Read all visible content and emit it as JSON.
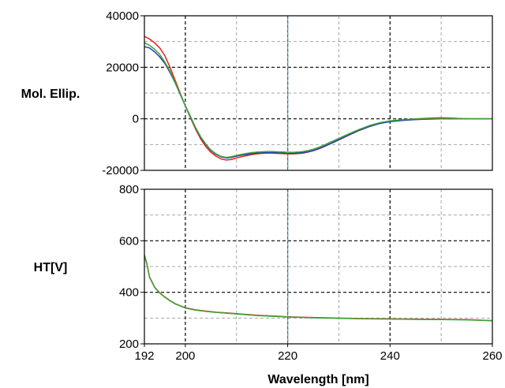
{
  "chart_data": [
    {
      "type": "line",
      "ylabel": "Mol. Ellip.",
      "xlim": [
        192,
        260
      ],
      "ylim": [
        -20000,
        40000
      ],
      "yticks": [
        40000,
        20000,
        0,
        -20000
      ],
      "grid": true,
      "cursor_x": 220,
      "series": [
        {
          "color": "#e8201f",
          "x": [
            192,
            193,
            194,
            195,
            196,
            197,
            198,
            199,
            200,
            201,
            202,
            203,
            204,
            205,
            206,
            207,
            208,
            209,
            210,
            211,
            212,
            213,
            214,
            215,
            216,
            217,
            218,
            219,
            220,
            221,
            222,
            223,
            224,
            225,
            226,
            227,
            228,
            229,
            230,
            232,
            234,
            236,
            238,
            240,
            242,
            244,
            246,
            248,
            250,
            252,
            254,
            256,
            258,
            260
          ],
          "values": [
            32000,
            31000,
            29500,
            27500,
            24500,
            20000,
            15000,
            10000,
            5000,
            400,
            -4000,
            -7800,
            -10800,
            -13000,
            -14500,
            -15600,
            -16000,
            -15800,
            -15200,
            -14700,
            -14300,
            -13900,
            -13600,
            -13400,
            -13300,
            -13300,
            -13400,
            -13500,
            -13600,
            -13600,
            -13500,
            -13300,
            -12900,
            -12400,
            -11700,
            -10900,
            -10000,
            -9100,
            -8200,
            -6300,
            -4500,
            -3000,
            -1800,
            -1000,
            -500,
            -150,
            100,
            300,
            400,
            300,
            100,
            0,
            0,
            0
          ]
        },
        {
          "color": "#1f3fb0",
          "x": [
            192,
            193,
            194,
            195,
            196,
            197,
            198,
            199,
            200,
            201,
            202,
            203,
            204,
            205,
            206,
            207,
            208,
            209,
            210,
            211,
            212,
            213,
            214,
            215,
            216,
            217,
            218,
            219,
            220,
            221,
            222,
            223,
            224,
            225,
            226,
            227,
            228,
            229,
            230,
            232,
            234,
            236,
            238,
            240,
            242,
            244,
            246,
            248,
            250,
            252,
            254,
            256,
            258,
            260
          ],
          "values": [
            28000,
            27500,
            26000,
            24000,
            21500,
            18000,
            14000,
            9500,
            5000,
            800,
            -3500,
            -7200,
            -10000,
            -12300,
            -13800,
            -14800,
            -15200,
            -15000,
            -14500,
            -14100,
            -13800,
            -13500,
            -13300,
            -13200,
            -13100,
            -13100,
            -13200,
            -13300,
            -13400,
            -13400,
            -13300,
            -13100,
            -12800,
            -12300,
            -11600,
            -10800,
            -9900,
            -9000,
            -8100,
            -6200,
            -4400,
            -2900,
            -1800,
            -1100,
            -700,
            -400,
            -200,
            -100,
            0,
            0,
            0,
            0,
            0,
            0
          ]
        },
        {
          "color": "#3aa335",
          "x": [
            192,
            193,
            194,
            195,
            196,
            197,
            198,
            199,
            200,
            201,
            202,
            203,
            204,
            205,
            206,
            207,
            208,
            209,
            210,
            211,
            212,
            213,
            214,
            215,
            216,
            217,
            218,
            219,
            220,
            221,
            222,
            223,
            224,
            225,
            226,
            227,
            228,
            229,
            230,
            232,
            234,
            236,
            238,
            240,
            242,
            244,
            246,
            248,
            250,
            252,
            254,
            256,
            258,
            260
          ],
          "values": [
            29500,
            28500,
            27000,
            25000,
            22000,
            18500,
            14200,
            9700,
            5100,
            900,
            -3400,
            -7000,
            -9800,
            -12100,
            -13600,
            -14600,
            -15000,
            -14700,
            -14200,
            -13800,
            -13400,
            -13100,
            -12900,
            -12800,
            -12700,
            -12700,
            -12800,
            -12900,
            -13000,
            -13000,
            -12900,
            -12700,
            -12300,
            -11800,
            -11100,
            -10300,
            -9400,
            -8500,
            -7600,
            -5800,
            -4100,
            -2600,
            -1500,
            -800,
            -400,
            -150,
            0,
            100,
            100,
            100,
            0,
            0,
            0,
            0
          ]
        }
      ]
    },
    {
      "type": "line",
      "xlabel": "Wavelength [nm]",
      "ylabel": "HT[V]",
      "xlim": [
        192,
        260
      ],
      "ylim": [
        200,
        800
      ],
      "xticks": [
        192,
        200,
        220,
        240,
        260
      ],
      "yticks": [
        800,
        600,
        400,
        200
      ],
      "grid": true,
      "cursor_x": 220,
      "series": [
        {
          "color": "#e8201f",
          "x": [
            192,
            192.5,
            193,
            194,
            195,
            196,
            197,
            198,
            199,
            200,
            202,
            204,
            206,
            208,
            210,
            212,
            214,
            216,
            218,
            220,
            225,
            230,
            235,
            240,
            245,
            250,
            255,
            260
          ],
          "values": [
            545,
            510,
            460,
            420,
            398,
            382,
            368,
            356,
            348,
            340,
            332,
            327,
            323,
            320,
            317,
            314,
            311,
            309,
            307,
            305,
            302,
            300,
            298,
            297,
            296,
            295,
            294,
            290
          ]
        },
        {
          "color": "#3aa335",
          "x": [
            192,
            192.5,
            193,
            194,
            195,
            196,
            197,
            198,
            199,
            200,
            202,
            204,
            206,
            208,
            210,
            212,
            214,
            216,
            218,
            220,
            225,
            230,
            235,
            240,
            245,
            250,
            255,
            260
          ],
          "values": [
            542,
            508,
            458,
            419,
            397,
            381,
            367,
            355,
            347,
            339,
            331,
            326,
            322,
            319,
            316,
            313,
            310,
            308,
            306,
            304,
            301,
            299,
            297,
            296,
            295,
            294,
            293,
            290
          ]
        }
      ]
    }
  ]
}
